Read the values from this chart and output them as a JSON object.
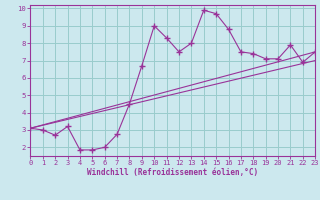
{
  "xlabel": "Windchill (Refroidissement éolien,°C)",
  "ylabel": "",
  "bg_color": "#cce8ee",
  "line_color": "#993399",
  "grid_color": "#99cccc",
  "axis_color": "#993399",
  "xmin": 0,
  "xmax": 23,
  "ymin": 1.5,
  "ymax": 10.2,
  "yticks": [
    2,
    3,
    4,
    5,
    6,
    7,
    8,
    9,
    10
  ],
  "xticks": [
    0,
    1,
    2,
    3,
    4,
    5,
    6,
    7,
    8,
    9,
    10,
    11,
    12,
    13,
    14,
    15,
    16,
    17,
    18,
    19,
    20,
    21,
    22,
    23
  ],
  "series1_x": [
    0,
    1,
    2,
    3,
    4,
    5,
    6,
    7,
    8,
    9,
    10,
    11,
    12,
    13,
    14,
    15,
    16,
    17,
    18,
    19,
    20,
    21,
    22,
    23
  ],
  "series1_y": [
    3.1,
    3.0,
    2.7,
    3.2,
    1.85,
    1.85,
    2.0,
    2.75,
    4.5,
    6.7,
    9.0,
    8.3,
    7.5,
    8.0,
    9.9,
    9.7,
    8.8,
    7.5,
    7.4,
    7.1,
    7.1,
    7.9,
    6.9,
    7.5
  ],
  "series2_x": [
    0,
    23
  ],
  "series2_y": [
    3.1,
    7.0
  ],
  "series3_x": [
    0,
    23
  ],
  "series3_y": [
    3.1,
    7.5
  ],
  "marker": "+",
  "markersize": 4,
  "markeredgewidth": 1.0,
  "linewidth": 0.8
}
